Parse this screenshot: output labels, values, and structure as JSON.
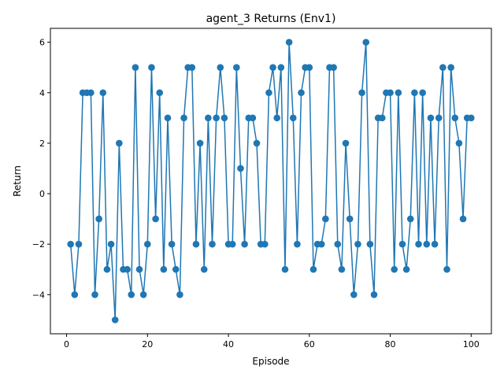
{
  "chart_data": {
    "type": "line",
    "title": "agent_3 Returns (Env1)",
    "xlabel": "Episode",
    "ylabel": "Return",
    "xlim": [
      -4,
      105
    ],
    "ylim": [
      -5.55,
      6.55
    ],
    "xticks": [
      0,
      20,
      40,
      60,
      80,
      100
    ],
    "yticks": [
      -4,
      -2,
      0,
      2,
      4,
      6
    ],
    "grid": false,
    "series": [
      {
        "color": "#1f77b4",
        "marker": "circle",
        "x": [
          1,
          2,
          3,
          4,
          5,
          6,
          7,
          8,
          9,
          10,
          11,
          12,
          13,
          14,
          15,
          16,
          17,
          18,
          19,
          20,
          21,
          22,
          23,
          24,
          25,
          26,
          27,
          28,
          29,
          30,
          31,
          32,
          33,
          34,
          35,
          36,
          37,
          38,
          39,
          40,
          41,
          42,
          43,
          44,
          45,
          46,
          47,
          48,
          49,
          50,
          51,
          52,
          53,
          54,
          55,
          56,
          57,
          58,
          59,
          60,
          61,
          62,
          63,
          64,
          65,
          66,
          67,
          68,
          69,
          70,
          71,
          72,
          73,
          74,
          75,
          76,
          77,
          78,
          79,
          80,
          81,
          82,
          83,
          84,
          85,
          86,
          87,
          88,
          89,
          90,
          91,
          92,
          93,
          94,
          95,
          96,
          97,
          98,
          99,
          100
        ],
        "y": [
          -2,
          -4,
          -2,
          4,
          4,
          4,
          -4,
          -1,
          4,
          -3,
          -2,
          -5,
          2,
          -3,
          -3,
          -4,
          5,
          -3,
          -4,
          -2,
          5,
          -1,
          4,
          -3,
          3,
          -2,
          -3,
          -4,
          3,
          5,
          5,
          -2,
          2,
          -3,
          3,
          -2,
          3,
          5,
          3,
          -2,
          -2,
          5,
          1,
          -2,
          3,
          3,
          2,
          -2,
          -2,
          4,
          5,
          3,
          5,
          -3,
          6,
          3,
          -2,
          4,
          5,
          5,
          -3,
          -2,
          -2,
          -1,
          5,
          5,
          -2,
          -3,
          2,
          -1,
          -4,
          -2,
          4,
          6,
          -2,
          -4,
          3,
          3,
          4,
          4,
          -3,
          4,
          -2,
          -3,
          -1,
          4,
          -2,
          4,
          -2,
          3,
          -2,
          3,
          5,
          -3,
          5,
          3,
          2,
          -1,
          3,
          3
        ]
      }
    ]
  }
}
